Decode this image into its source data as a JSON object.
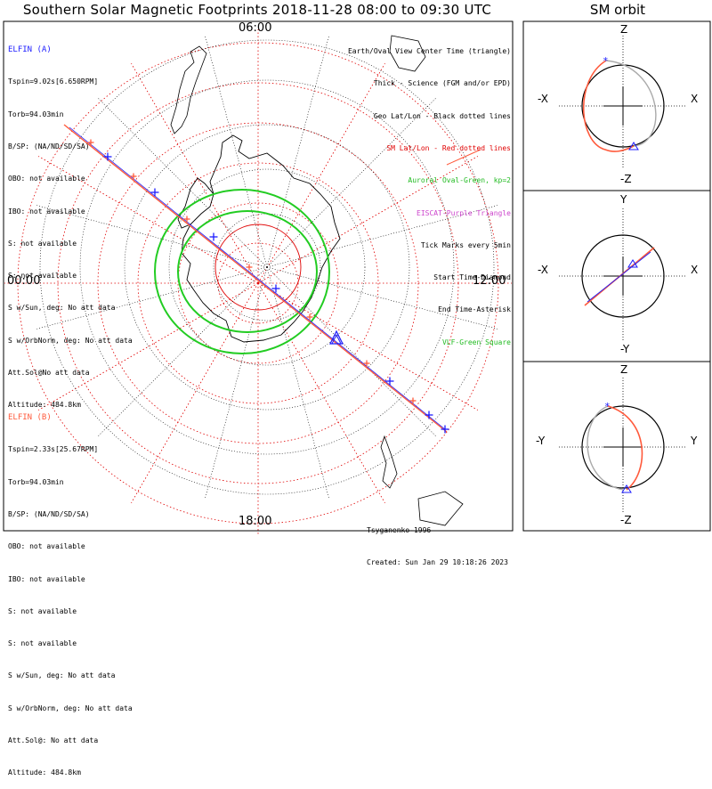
{
  "title": "Southern Solar Magnetic Footprints 2018-11-28 08:00 to 09:30 UTC",
  "orbit_title": "SM orbit",
  "clock_labels": {
    "top": "06:00",
    "left": "00:00",
    "right": "12:00",
    "bottom": "18:00"
  },
  "elfin_a": {
    "name": "ELFIN (A)",
    "color": "#1c1cff",
    "lines": [
      "Tspin=9.02s[6.650RPM]",
      "Torb=94.03min",
      "B/SP: (NA/ND/SD/SA)",
      "OBO: not available",
      "IBO: not available",
      "S: not available",
      "S: not available",
      "S w/Sun, deg: No att data",
      "S w/OrbNorm, deg: No att data",
      "Att.Sol@No att data",
      "Altitude: 484.8km"
    ]
  },
  "elfin_b": {
    "name": "ELFIN (B)",
    "color": "#ff5a3c",
    "lines": [
      "Tspin=2.33s[25.67RPM]",
      "Torb=94.03min",
      "B/SP: (NA/ND/SD/SA)",
      "OBO: not available",
      "IBO: not available",
      "S: not available",
      "S: not available",
      "S w/Sun, deg: No att data",
      "S w/OrbNorm, deg: No att data",
      "Att.Sol@: No att data",
      "Altitude: 484.8km"
    ]
  },
  "legend": [
    {
      "text": "Earth/Oval View Center Time (triangle)",
      "color": "#000000"
    },
    {
      "text": "Thick - Science (FGM and/or EPD)",
      "color": "#000000"
    },
    {
      "text": "Geo Lat/Lon - Black dotted lines",
      "color": "#000000"
    },
    {
      "text": "SM Lat/Lon - Red dotted lines",
      "color": "#e00000"
    },
    {
      "text": "Auroral Oval-Green, kp=2",
      "color": "#22bb22"
    },
    {
      "text": "EISCAT-Purple Triangle",
      "color": "#cc44cc"
    },
    {
      "text": "Tick Marks every 5min",
      "color": "#000000"
    },
    {
      "text": "Start Time-Diamond",
      "color": "#000000"
    },
    {
      "text": "End Time-Asterisk",
      "color": "#000000"
    },
    {
      "text": "VLF-Green Square",
      "color": "#22bb22"
    }
  ],
  "credit": [
    "Tsyganenko-1996",
    "Created: Sun Jan 29 10:18:26 2023"
  ],
  "orbit_panels": [
    {
      "top": "Z",
      "bottom": "-Z",
      "left": "-X",
      "right": "X"
    },
    {
      "top": "Y",
      "bottom": "-Y",
      "left": "-X",
      "right": "X"
    },
    {
      "top": "Z",
      "bottom": "-Z",
      "left": "-Y",
      "right": "Y"
    }
  ],
  "colors": {
    "sm_grid": "#e00000",
    "geo_grid": "#000000",
    "oval": "#22cc22",
    "track_a": "#1c1cff",
    "track_b": "#ff5a3c",
    "gray_orbit": "#aaaaaa"
  }
}
